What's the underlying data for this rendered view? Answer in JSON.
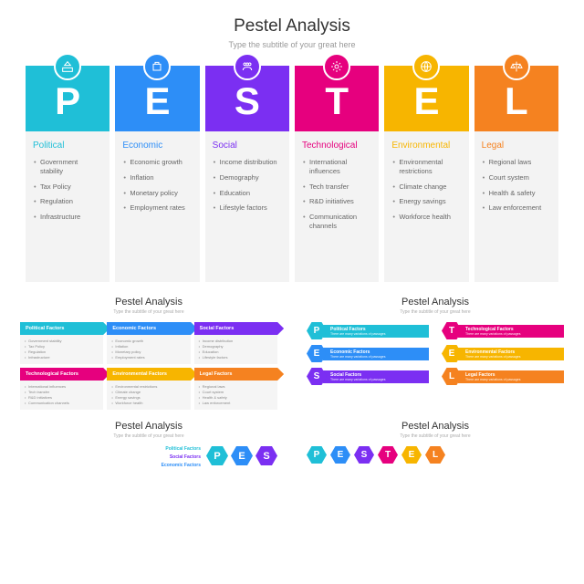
{
  "main": {
    "title": "Pestel Analysis",
    "subtitle": "Type the subtitle of your great here",
    "columns": [
      {
        "letter": "P",
        "category": "Political",
        "color": "#1fbfd7",
        "titleColor": "#1fbfd7",
        "items": [
          "Government stability",
          "Tax Policy",
          "Regulation",
          "Infrastructure"
        ]
      },
      {
        "letter": "E",
        "category": "Economic",
        "color": "#2d8ef7",
        "titleColor": "#2d8ef7",
        "items": [
          "Economic growth",
          "Inflation",
          "Monetary policy",
          "Employment rates"
        ]
      },
      {
        "letter": "S",
        "category": "Social",
        "color": "#7b2ff2",
        "titleColor": "#7b2ff2",
        "items": [
          "Income distribution",
          "Demography",
          "Education",
          "Lifestyle factors"
        ]
      },
      {
        "letter": "T",
        "category": "Technological",
        "color": "#e6007e",
        "titleColor": "#e6007e",
        "items": [
          "International influences",
          "Tech transfer",
          "R&D initiatives",
          "Communication channels"
        ]
      },
      {
        "letter": "E",
        "category": "Environmental",
        "color": "#f7b500",
        "titleColor": "#f7b500",
        "items": [
          "Environmental restrictions",
          "Climate change",
          "Energy savings",
          "Workforce health"
        ]
      },
      {
        "letter": "L",
        "category": "Legal",
        "color": "#f58220",
        "titleColor": "#f58220",
        "items": [
          "Regional laws",
          "Court system",
          "Health & safety",
          "Law enforcement"
        ]
      }
    ]
  },
  "thumb1": {
    "title": "Pestel Analysis",
    "subtitle": "Type the subtitle of your great here",
    "cells": [
      {
        "label": "Political Factors",
        "color": "#1fbfd7",
        "items": [
          "Government stability",
          "Tax Policy",
          "Regulation",
          "Infrastructure"
        ]
      },
      {
        "label": "Economic Factors",
        "color": "#2d8ef7",
        "items": [
          "Economic growth",
          "Inflation",
          "Monetary policy",
          "Employment rates"
        ]
      },
      {
        "label": "Social Factors",
        "color": "#7b2ff2",
        "items": [
          "Income distribution",
          "Demography",
          "Education",
          "Lifestyle factors"
        ]
      },
      {
        "label": "Technological Factors",
        "color": "#e6007e",
        "items": [
          "International influences",
          "Tech transfer",
          "R&D initiatives",
          "Communication channels"
        ]
      },
      {
        "label": "Environmental Factors",
        "color": "#f7b500",
        "items": [
          "Environmental restrictions",
          "Climate change",
          "Energy savings",
          "Workforce health"
        ]
      },
      {
        "label": "Legal Factors",
        "color": "#f58220",
        "items": [
          "Regional laws",
          "Court system",
          "Health & safety",
          "Law enforcement"
        ]
      }
    ]
  },
  "thumb2": {
    "title": "Pestel Analysis",
    "subtitle": "Type the subtitle of your great here",
    "desc": "There are many variations of passages",
    "rows": [
      {
        "l": "P",
        "label": "Political Factors",
        "color": "#1fbfd7"
      },
      {
        "l": "T",
        "label": "Technological Factors",
        "color": "#e6007e"
      },
      {
        "l": "E",
        "label": "Economic Factors",
        "color": "#2d8ef7"
      },
      {
        "l": "E",
        "label": "Environmental Factors",
        "color": "#f7b500"
      },
      {
        "l": "S",
        "label": "Social Factors",
        "color": "#7b2ff2"
      },
      {
        "l": "L",
        "label": "Legal Factors",
        "color": "#f58220"
      }
    ]
  },
  "thumb3": {
    "title": "Pestel Analysis",
    "subtitle": "Type the subtitle of your great here",
    "labels": [
      {
        "t": "Political Factors",
        "c": "#1fbfd7"
      },
      {
        "t": "Social Factors",
        "c": "#7b2ff2"
      },
      {
        "t": "Economic Factors",
        "c": "#2d8ef7"
      }
    ],
    "hexes": [
      {
        "l": "P",
        "c": "#1fbfd7"
      },
      {
        "l": "E",
        "c": "#2d8ef7"
      },
      {
        "l": "S",
        "c": "#7b2ff2"
      }
    ]
  },
  "thumb4": {
    "title": "Pestel Analysis",
    "subtitle": "Type the subtitle of your great here",
    "hexes": [
      {
        "l": "P",
        "c": "#1fbfd7"
      },
      {
        "l": "E",
        "c": "#2d8ef7"
      },
      {
        "l": "S",
        "c": "#7b2ff2"
      },
      {
        "l": "T",
        "c": "#e6007e"
      },
      {
        "l": "E",
        "c": "#f7b500"
      },
      {
        "l": "L",
        "c": "#f58220"
      }
    ]
  }
}
